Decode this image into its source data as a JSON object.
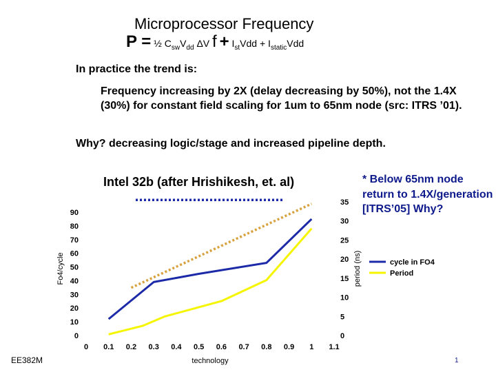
{
  "slide": {
    "title": "Microprocessor Frequency",
    "formula": {
      "lead": "P =",
      "half": "½ C",
      "sw_sub": "sw",
      "vdd1": "V",
      "dd_sub": "dd",
      "delta_v": "ΔV",
      "f": "f",
      "plus1": "+",
      "i_st": "I",
      "st_sub": "st",
      "vdd2": "Vdd +",
      "i_static": "I",
      "static_sub": "static",
      "vdd3": "Vdd"
    },
    "bullet1": "In practice the trend is:",
    "paragraph": "Frequency increasing by 2X (delay decreasing by 50%), not the 1.4X (30%) for constant field scaling for 1um to 65nm node (src: ITRS ’01).",
    "bullet2": "Why? decreasing logic/stage and increased pipeline depth.",
    "note": "* Below 65nm node return to 1.4X/generation [ITRS’05] Why?",
    "footer_left": "EE382M",
    "page_number": "1"
  },
  "chart_data": {
    "type": "line",
    "title": "Intel 32b (after Hrishikesh, et. al)",
    "xlabel": "technology",
    "ylabel_left": "Fo4/cycle",
    "ylabel_right": "period (ns)",
    "x_ticks": [
      "0",
      "0.1",
      "0.2",
      "0.3",
      "0.4",
      "0.5",
      "0.6",
      "0.7",
      "0.8",
      "0.9",
      "1",
      "1.1"
    ],
    "y_left_ticks": [
      "0",
      "10",
      "20",
      "30",
      "40",
      "50",
      "60",
      "70",
      "80",
      "90"
    ],
    "y_right_ticks": [
      "0",
      "5",
      "10",
      "15",
      "20",
      "25",
      "30",
      "35"
    ],
    "xlim": [
      0,
      1.1
    ],
    "ylim_left": [
      0,
      90
    ],
    "ylim_right": [
      0,
      35
    ],
    "legend_position": "right",
    "grid": false,
    "series": [
      {
        "name": "cycle in FO4",
        "axis": "left",
        "color": "#1c2aa8",
        "style": "solid",
        "x": [
          0.1,
          0.3,
          0.5,
          0.8,
          1.0
        ],
        "y": [
          12,
          39,
          45,
          53,
          85
        ]
      },
      {
        "name": "Period",
        "axis": "right",
        "color": "#f5f500",
        "style": "solid",
        "x": [
          0.1,
          0.25,
          0.35,
          0.6,
          0.8,
          1.0
        ],
        "y": [
          0.3,
          2.5,
          5,
          9,
          14.5,
          28
        ]
      },
      {
        "name": "",
        "axis": "right",
        "color": "#d8a23e",
        "style": "dotted",
        "x": [
          0.2,
          1.0
        ],
        "y": [
          12.5,
          34.5
        ]
      },
      {
        "name": "",
        "axis": "right",
        "color": "#1c2aa8",
        "style": "dotted",
        "x": [
          0.22,
          0.88
        ],
        "y": [
          35.5,
          35.5
        ]
      }
    ]
  }
}
